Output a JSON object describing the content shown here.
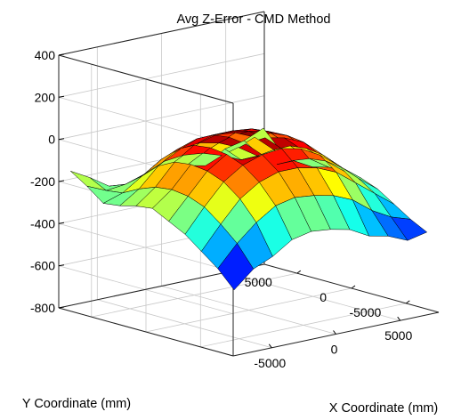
{
  "chart_data": {
    "type": "surface",
    "title": "Avg Z-Error - CMD Method",
    "xlabel": "X Coordinate (mm)",
    "ylabel": "Y Coordinate (mm)",
    "zlabel": "",
    "xlim": [
      -8000,
      8000
    ],
    "ylim": [
      -8000,
      8000
    ],
    "zlim": [
      -800,
      400
    ],
    "xticks": [
      -5000,
      0,
      5000
    ],
    "yticks": [
      -5000,
      0,
      5000
    ],
    "zticks": [
      -800,
      -600,
      -400,
      -200,
      0,
      200,
      400
    ],
    "grid": true,
    "colormap": "jet",
    "surface_grid": {
      "x": [
        -7500,
        -6000,
        -4500,
        -3000,
        -1500,
        0,
        1500,
        3000,
        4500,
        6000,
        7500
      ],
      "y": [
        -7500,
        -6000,
        -4500,
        -3000,
        -1500,
        0,
        1500,
        3000,
        4500,
        6000,
        7500
      ],
      "z": [
        [
          -500,
          -420,
          -380,
          -320,
          -300,
          -310,
          -330,
          -380,
          -400,
          -440,
          -420
        ],
        [
          -420,
          -320,
          -240,
          -180,
          -160,
          -170,
          -190,
          -230,
          -300,
          -350,
          -380
        ],
        [
          -360,
          -250,
          -150,
          -90,
          -60,
          -60,
          -80,
          -120,
          -190,
          -260,
          -330
        ],
        [
          -300,
          -190,
          -90,
          -30,
          0,
          10,
          -10,
          -60,
          -130,
          -210,
          -280
        ],
        [
          -260,
          -160,
          -60,
          0,
          30,
          40,
          20,
          -20,
          -100,
          -180,
          -250
        ],
        [
          -220,
          -150,
          -50,
          10,
          40,
          50,
          30,
          -10,
          -90,
          -170,
          -240
        ],
        [
          -230,
          -160,
          -60,
          0,
          30,
          30,
          20,
          -20,
          -100,
          -180,
          -240
        ],
        [
          -250,
          -190,
          -100,
          -40,
          -10,
          -10,
          -20,
          -60,
          -140,
          -210,
          -260
        ],
        [
          -260,
          -230,
          -170,
          -110,
          -80,
          -70,
          -90,
          -130,
          -190,
          -250,
          -250
        ],
        [
          -200,
          -240,
          -230,
          -200,
          -160,
          -150,
          -160,
          -190,
          -230,
          -230,
          -220
        ],
        [
          -150,
          -200,
          -260,
          -270,
          -240,
          -230,
          -240,
          -260,
          -200,
          -180,
          -140
        ]
      ]
    }
  }
}
